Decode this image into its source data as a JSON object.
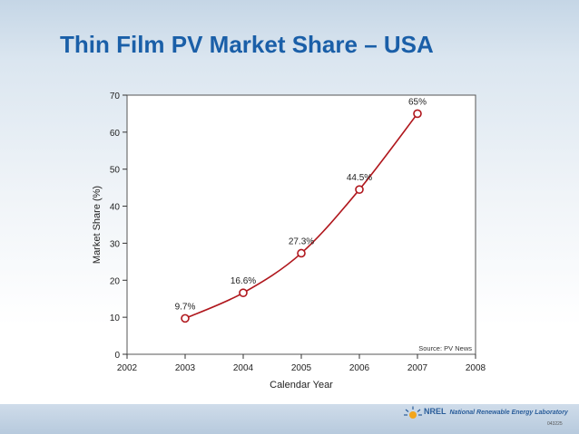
{
  "slide": {
    "title": "Thin Film PV Market Share – USA",
    "footer_org_short": "NREL",
    "footer_org_full": "National Renewable Energy Laboratory",
    "slide_code": "043225"
  },
  "colors": {
    "title": "#1a5fa8",
    "line": "#b0171d",
    "plot_bg": "#ffffff",
    "footer": "#b7cadd"
  },
  "chart_data": {
    "type": "line",
    "xlabel": "Calendar Year",
    "ylabel": "Market Share (%)",
    "xlim": [
      2002,
      2008
    ],
    "ylim": [
      0,
      70
    ],
    "x_ticks": [
      2002,
      2003,
      2004,
      2005,
      2006,
      2007,
      2008
    ],
    "y_ticks": [
      0,
      10,
      20,
      30,
      40,
      50,
      60,
      70
    ],
    "series": [
      {
        "name": "Thin Film PV Market Share",
        "x": [
          2003,
          2004,
          2005,
          2006,
          2007
        ],
        "y": [
          9.7,
          16.6,
          27.3,
          44.5,
          65
        ],
        "labels": [
          "9.7%",
          "16.6%",
          "27.3%",
          "44.5%",
          "65%"
        ]
      }
    ],
    "annotation": "Source: PV News"
  }
}
